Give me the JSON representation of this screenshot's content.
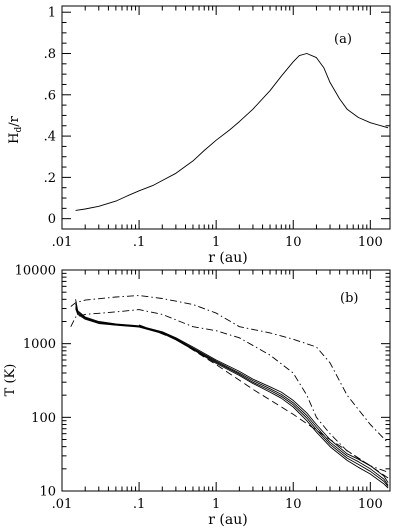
{
  "chart_data": [
    {
      "type": "line",
      "panel_label": "(a)",
      "xlabel": "r (au)",
      "ylabel": "H_d/r",
      "ylabel_main": "H",
      "ylabel_sub": "d",
      "ylabel_tail": "/r",
      "xscale": "log",
      "xlim": [
        0.01,
        180
      ],
      "ylim": [
        -0.05,
        1.03
      ],
      "xticks": [
        {
          "v": 0.01,
          "label": ".01"
        },
        {
          "v": 0.1,
          "label": ".1"
        },
        {
          "v": 1,
          "label": "1"
        },
        {
          "v": 10,
          "label": "10"
        },
        {
          "v": 100,
          "label": "100"
        }
      ],
      "yticks": [
        {
          "v": 0,
          "label": "0"
        },
        {
          "v": 0.2,
          "label": ".2"
        },
        {
          "v": 0.4,
          "label": ".4"
        },
        {
          "v": 0.6,
          "label": ".6"
        },
        {
          "v": 0.8,
          "label": ".8"
        },
        {
          "v": 1,
          "label": "1"
        }
      ],
      "series": [
        {
          "style": "solid",
          "points": [
            [
              0.015,
              0.04
            ],
            [
              0.02,
              0.047
            ],
            [
              0.03,
              0.06
            ],
            [
              0.05,
              0.085
            ],
            [
              0.07,
              0.11
            ],
            [
              0.1,
              0.135
            ],
            [
              0.15,
              0.16
            ],
            [
              0.2,
              0.185
            ],
            [
              0.3,
              0.22
            ],
            [
              0.5,
              0.28
            ],
            [
              0.7,
              0.33
            ],
            [
              1,
              0.38
            ],
            [
              1.5,
              0.43
            ],
            [
              2,
              0.47
            ],
            [
              3,
              0.53
            ],
            [
              5,
              0.62
            ],
            [
              7,
              0.69
            ],
            [
              10,
              0.76
            ],
            [
              12,
              0.79
            ],
            [
              15,
              0.8
            ],
            [
              20,
              0.78
            ],
            [
              25,
              0.73
            ],
            [
              30,
              0.66
            ],
            [
              40,
              0.58
            ],
            [
              50,
              0.53
            ],
            [
              70,
              0.49
            ],
            [
              100,
              0.465
            ],
            [
              170,
              0.44
            ]
          ]
        }
      ]
    },
    {
      "type": "line",
      "panel_label": "(b)",
      "xlabel": "r (au)",
      "ylabel": "T (K)",
      "xscale": "log",
      "yscale": "log",
      "xlim": [
        0.01,
        180
      ],
      "ylim": [
        10,
        10000
      ],
      "xticks": [
        {
          "v": 0.01,
          "label": ".01"
        },
        {
          "v": 0.1,
          "label": ".1"
        },
        {
          "v": 1,
          "label": "1"
        },
        {
          "v": 10,
          "label": "10"
        },
        {
          "v": 100,
          "label": "100"
        }
      ],
      "yticks": [
        {
          "v": 10,
          "label": "10"
        },
        {
          "v": 100,
          "label": "100"
        },
        {
          "v": 1000,
          "label": "1000"
        },
        {
          "v": 10000,
          "label": "10000"
        }
      ],
      "series": [
        {
          "style": "solid",
          "points": [
            [
              0.015,
              4000
            ],
            [
              0.016,
              2800
            ],
            [
              0.02,
              2300
            ],
            [
              0.03,
              2000
            ],
            [
              0.05,
              1850
            ],
            [
              0.1,
              1750
            ],
            [
              0.2,
              1450
            ],
            [
              0.3,
              1200
            ],
            [
              0.5,
              900
            ],
            [
              1,
              600
            ],
            [
              2,
              420
            ],
            [
              3,
              330
            ],
            [
              5,
              260
            ],
            [
              7,
              220
            ],
            [
              10,
              170
            ],
            [
              15,
              115
            ],
            [
              20,
              80
            ],
            [
              30,
              50
            ],
            [
              50,
              32
            ],
            [
              70,
              27
            ],
            [
              100,
              22
            ],
            [
              150,
              16
            ],
            [
              170,
              13
            ]
          ]
        },
        {
          "style": "solid",
          "points": [
            [
              0.015,
              3500
            ],
            [
              0.016,
              2700
            ],
            [
              0.02,
              2250
            ],
            [
              0.03,
              1950
            ],
            [
              0.05,
              1820
            ],
            [
              0.1,
              1720
            ],
            [
              0.2,
              1420
            ],
            [
              0.3,
              1170
            ],
            [
              0.5,
              870
            ],
            [
              1,
              580
            ],
            [
              2,
              400
            ],
            [
              3,
              315
            ],
            [
              5,
              245
            ],
            [
              7,
              205
            ],
            [
              10,
              158
            ],
            [
              15,
              106
            ],
            [
              20,
              74
            ],
            [
              30,
              46
            ],
            [
              50,
              30
            ],
            [
              70,
              25
            ],
            [
              100,
              20
            ],
            [
              150,
              14.5
            ],
            [
              170,
              12
            ]
          ]
        },
        {
          "style": "solid",
          "points": [
            [
              0.015,
              3200
            ],
            [
              0.016,
              2600
            ],
            [
              0.02,
              2200
            ],
            [
              0.03,
              1900
            ],
            [
              0.05,
              1800
            ],
            [
              0.1,
              1700
            ],
            [
              0.2,
              1400
            ],
            [
              0.3,
              1150
            ],
            [
              0.5,
              850
            ],
            [
              1,
              560
            ],
            [
              2,
              385
            ],
            [
              3,
              300
            ],
            [
              5,
              232
            ],
            [
              7,
              193
            ],
            [
              10,
              148
            ],
            [
              15,
              98
            ],
            [
              20,
              68
            ],
            [
              30,
              43
            ],
            [
              50,
              28
            ],
            [
              70,
              23
            ],
            [
              100,
              18.5
            ],
            [
              150,
              13.5
            ],
            [
              170,
              11.5
            ]
          ]
        },
        {
          "style": "solid",
          "points": [
            [
              0.015,
              3000
            ],
            [
              0.016,
              2500
            ],
            [
              0.02,
              2150
            ],
            [
              0.03,
              1880
            ],
            [
              0.05,
              1780
            ],
            [
              0.1,
              1680
            ],
            [
              0.2,
              1380
            ],
            [
              0.3,
              1130
            ],
            [
              0.5,
              830
            ],
            [
              1,
              540
            ],
            [
              2,
              370
            ],
            [
              3,
              288
            ],
            [
              5,
              220
            ],
            [
              7,
              182
            ],
            [
              10,
              138
            ],
            [
              15,
              90
            ],
            [
              20,
              63
            ],
            [
              30,
              40
            ],
            [
              50,
              26
            ],
            [
              70,
              21
            ],
            [
              100,
              17
            ],
            [
              150,
              12.5
            ],
            [
              170,
              11
            ]
          ]
        },
        {
          "style": "dashed",
          "points": [
            [
              0.1,
              1800
            ],
            [
              0.3,
              1150
            ],
            [
              1,
              520
            ],
            [
              3,
              240
            ],
            [
              10,
              110
            ],
            [
              30,
              50
            ],
            [
              100,
              22
            ],
            [
              170,
              15
            ]
          ]
        },
        {
          "style": "dashdot",
          "points": [
            [
              0.013,
              3200
            ],
            [
              0.015,
              3600
            ],
            [
              0.02,
              3900
            ],
            [
              0.05,
              4300
            ],
            [
              0.1,
              4500
            ],
            [
              0.2,
              4100
            ],
            [
              0.5,
              3400
            ],
            [
              1,
              2600
            ],
            [
              2,
              1700
            ],
            [
              5,
              1400
            ],
            [
              10,
              1150
            ],
            [
              20,
              900
            ],
            [
              30,
              550
            ],
            [
              50,
              200
            ],
            [
              100,
              80
            ],
            [
              170,
              45
            ]
          ]
        },
        {
          "style": "dashdot",
          "points": [
            [
              0.013,
              1700
            ],
            [
              0.015,
              2300
            ],
            [
              0.02,
              2500
            ],
            [
              0.05,
              2700
            ],
            [
              0.1,
              2900
            ],
            [
              0.2,
              2500
            ],
            [
              0.5,
              1700
            ],
            [
              1,
              1500
            ],
            [
              2,
              1200
            ],
            [
              5,
              700
            ],
            [
              10,
              400
            ],
            [
              15,
              200
            ],
            [
              20,
              100
            ],
            [
              30,
              60
            ],
            [
              50,
              35
            ],
            [
              70,
              28
            ],
            [
              100,
              22
            ],
            [
              170,
              18
            ]
          ]
        }
      ]
    }
  ]
}
